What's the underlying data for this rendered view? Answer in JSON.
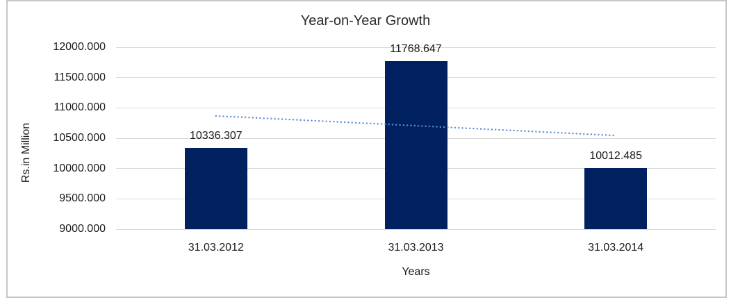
{
  "page": {
    "background_color": "#FFFFFF",
    "frame_border_color": "#C6C6C6"
  },
  "chart_data": {
    "type": "bar",
    "title": "Year-on-Year Growth",
    "xlabel": "Years",
    "ylabel": "Rs.in Million",
    "categories": [
      "31.03.2012",
      "31.03.2013",
      "31.03.2014"
    ],
    "series": [
      {
        "name": "Rs.in Million",
        "values": [
          10336.307,
          11768.647,
          10012.485
        ]
      }
    ],
    "data_labels": [
      "10336.307",
      "11768.647",
      "10012.485"
    ],
    "y_ticks": [
      "12000.000",
      "11500.000",
      "11000.000",
      "10500.000",
      "10000.000",
      "9500.000",
      "9000.000"
    ],
    "ylim": [
      9000,
      12000
    ],
    "grid": true,
    "legend": "none",
    "bar_color": "#002060",
    "gridline_color": "#D9D9D9",
    "text_color": "#1A1A1A",
    "trendline": {
      "type": "linear",
      "style": "dotted",
      "color": "#5B8FD5",
      "start_value": 10867.7,
      "end_value": 10543.9
    }
  }
}
